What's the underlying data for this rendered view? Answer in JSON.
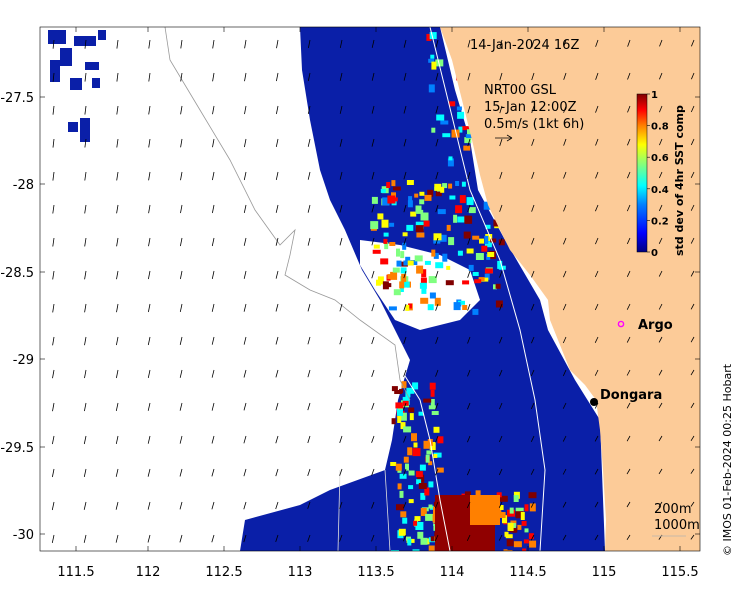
{
  "map": {
    "time_label": "14-Jan-2024 16Z",
    "wind_model": "NRT00 GSL",
    "wind_time": "15-Jan 12:00Z",
    "wind_scale_text": "0.5m/s (1kt 6h)",
    "x_ticks": [
      "111.5",
      "112",
      "112.5",
      "113",
      "113.5",
      "114",
      "114.5",
      "115",
      "115.5"
    ],
    "y_ticks": [
      "-27.5",
      "-28",
      "-28.5",
      "-29",
      "-29.5",
      "-30"
    ],
    "places": [
      {
        "name": "Argo",
        "lon": 115.1,
        "lat": -28.9,
        "marker": "circle",
        "color": "#ff00ff"
      },
      {
        "name": "Dongara",
        "lon": 114.93,
        "lat": -29.25,
        "marker": "dot",
        "color": "#000000"
      }
    ],
    "isobaths": [
      "200m",
      "1000m"
    ],
    "credit": "© IMOS 01-Feb-2024 00:25 Hobart"
  },
  "colorbar": {
    "label": "std dev of 4hr SST comp",
    "ticks": [
      "0",
      "0.2",
      "0.4",
      "0.6",
      "0.8",
      "1"
    ],
    "colors": [
      "#00007f",
      "#0000ff",
      "#0080ff",
      "#00ffff",
      "#80ff80",
      "#ffff00",
      "#ff8000",
      "#ff0000",
      "#800000"
    ]
  },
  "colors": {
    "land": "#fccb98",
    "cloud": "#ffffff",
    "ocean_low": "#0a1fa8",
    "coast": "#999999"
  }
}
